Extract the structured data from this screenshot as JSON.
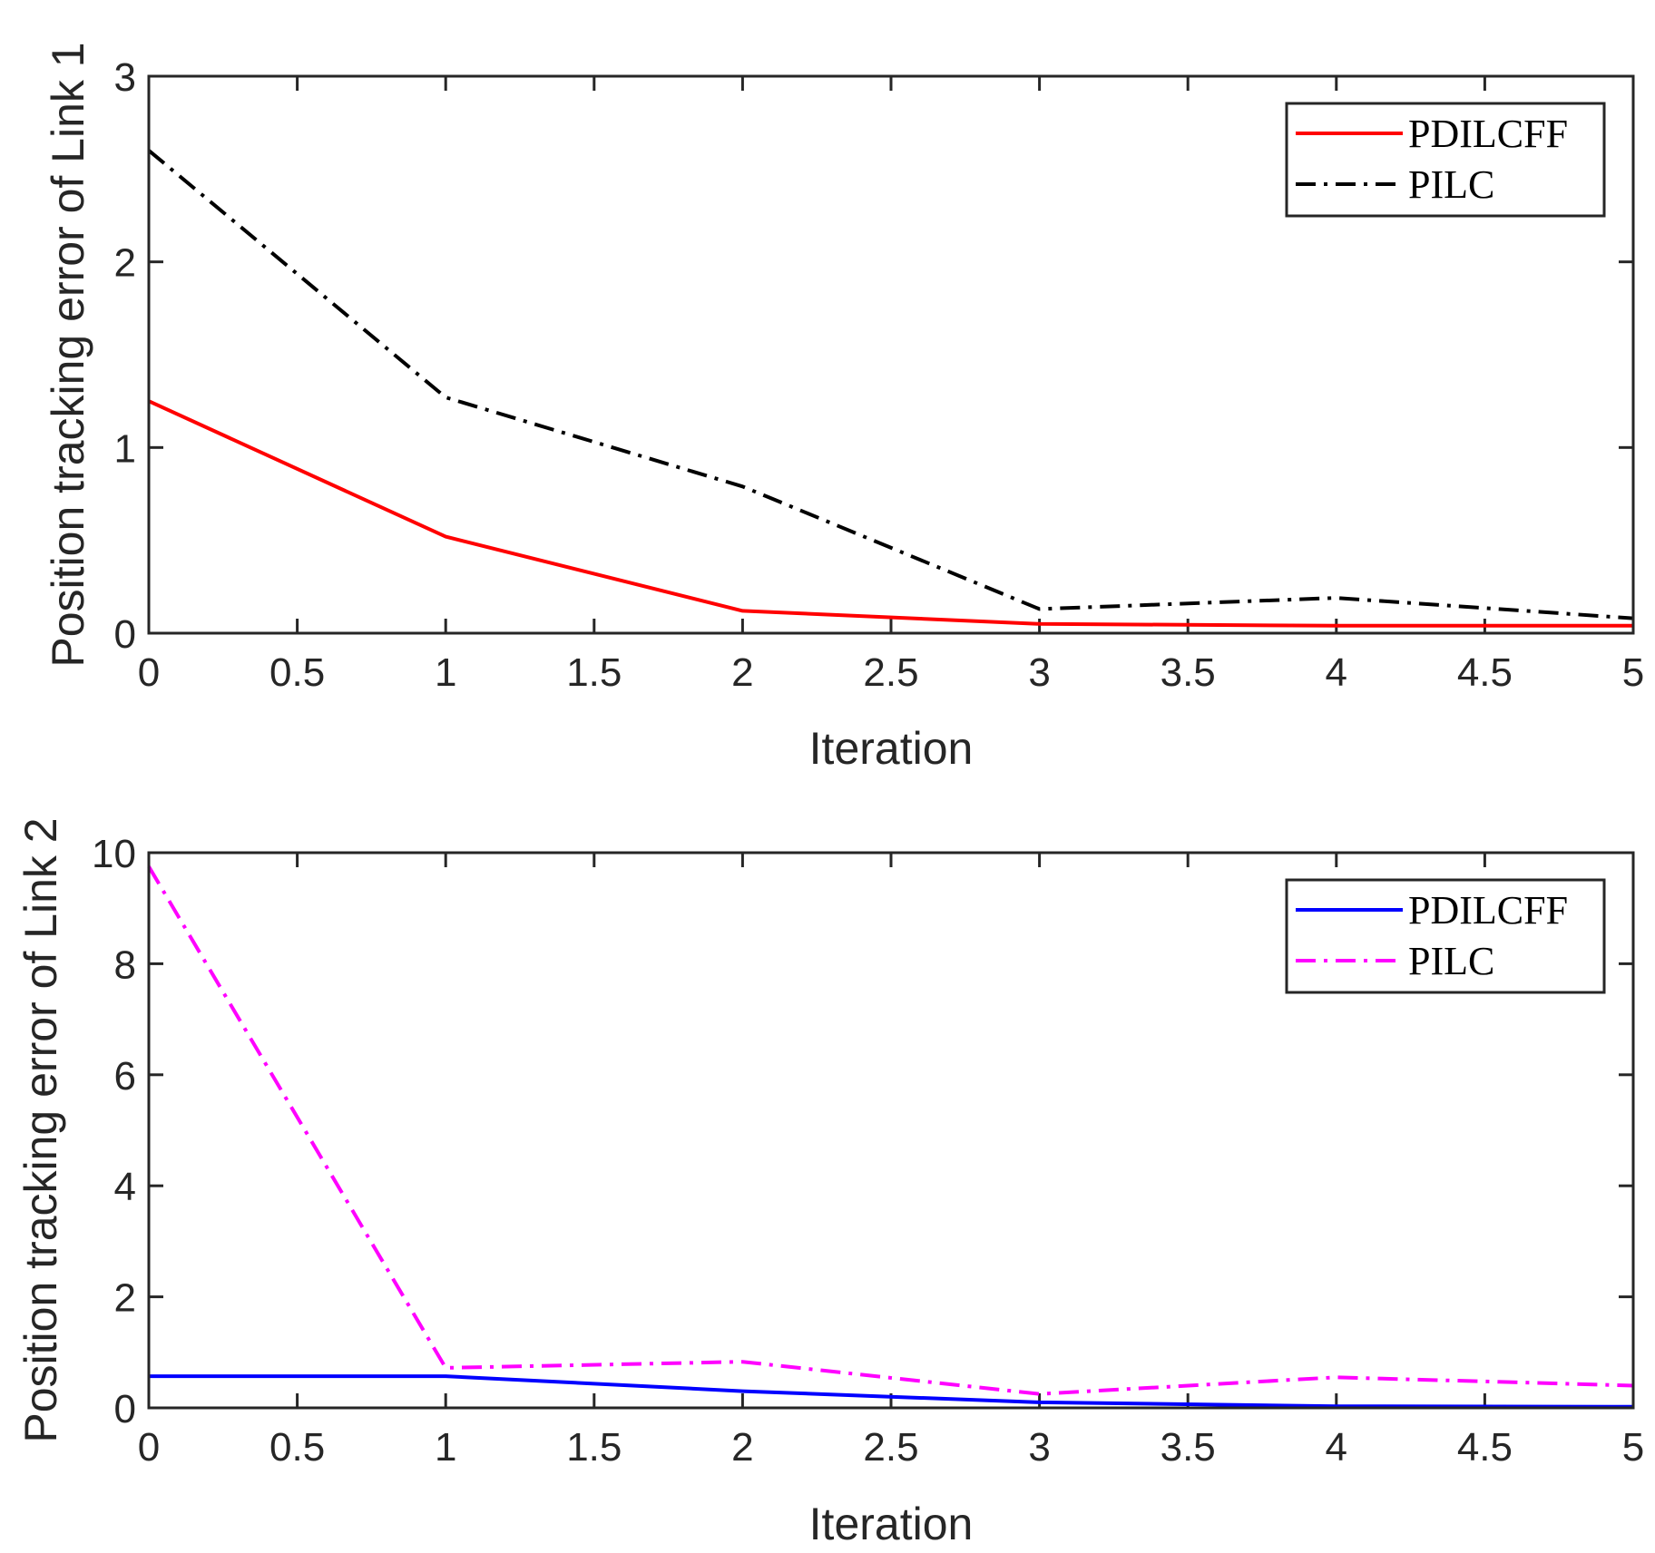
{
  "chart_data": [
    {
      "type": "line",
      "x": [
        0,
        1,
        2,
        3,
        4,
        5
      ],
      "xlabel": "Iteration",
      "ylabel": "Position tracking error of Link 1",
      "xlim": [
        0,
        5
      ],
      "ylim": [
        0,
        3
      ],
      "xticks": [
        "0",
        "0.5",
        "1",
        "1.5",
        "2",
        "2.5",
        "3",
        "3.5",
        "4",
        "4.5",
        "5"
      ],
      "yticks": [
        "0",
        "1",
        "2",
        "3"
      ],
      "legend_position": "top-right",
      "series": [
        {
          "name": "PDILCFF",
          "values": [
            1.25,
            0.52,
            0.12,
            0.05,
            0.04,
            0.04
          ],
          "color": "#ff0000",
          "style": "solid"
        },
        {
          "name": "PILC",
          "values": [
            2.6,
            1.27,
            0.79,
            0.13,
            0.19,
            0.08
          ],
          "color": "#000000",
          "style": "dashdot"
        }
      ]
    },
    {
      "type": "line",
      "x": [
        0,
        1,
        2,
        3,
        4,
        5
      ],
      "xlabel": "Iteration",
      "ylabel": "Position tracking error of Link 2",
      "xlim": [
        0,
        5
      ],
      "ylim": [
        0,
        10
      ],
      "xticks": [
        "0",
        "0.5",
        "1",
        "1.5",
        "2",
        "2.5",
        "3",
        "3.5",
        "4",
        "4.5",
        "5"
      ],
      "yticks": [
        "0",
        "2",
        "4",
        "6",
        "8",
        "10"
      ],
      "legend_position": "top-right",
      "series": [
        {
          "name": "PDILCFF",
          "values": [
            0.57,
            0.57,
            0.3,
            0.1,
            0.03,
            0.02
          ],
          "color": "#0000ff",
          "style": "solid"
        },
        {
          "name": "PILC",
          "values": [
            9.75,
            0.72,
            0.83,
            0.25,
            0.55,
            0.4
          ],
          "color": "#ff00ff",
          "style": "dashdot"
        }
      ]
    }
  ]
}
